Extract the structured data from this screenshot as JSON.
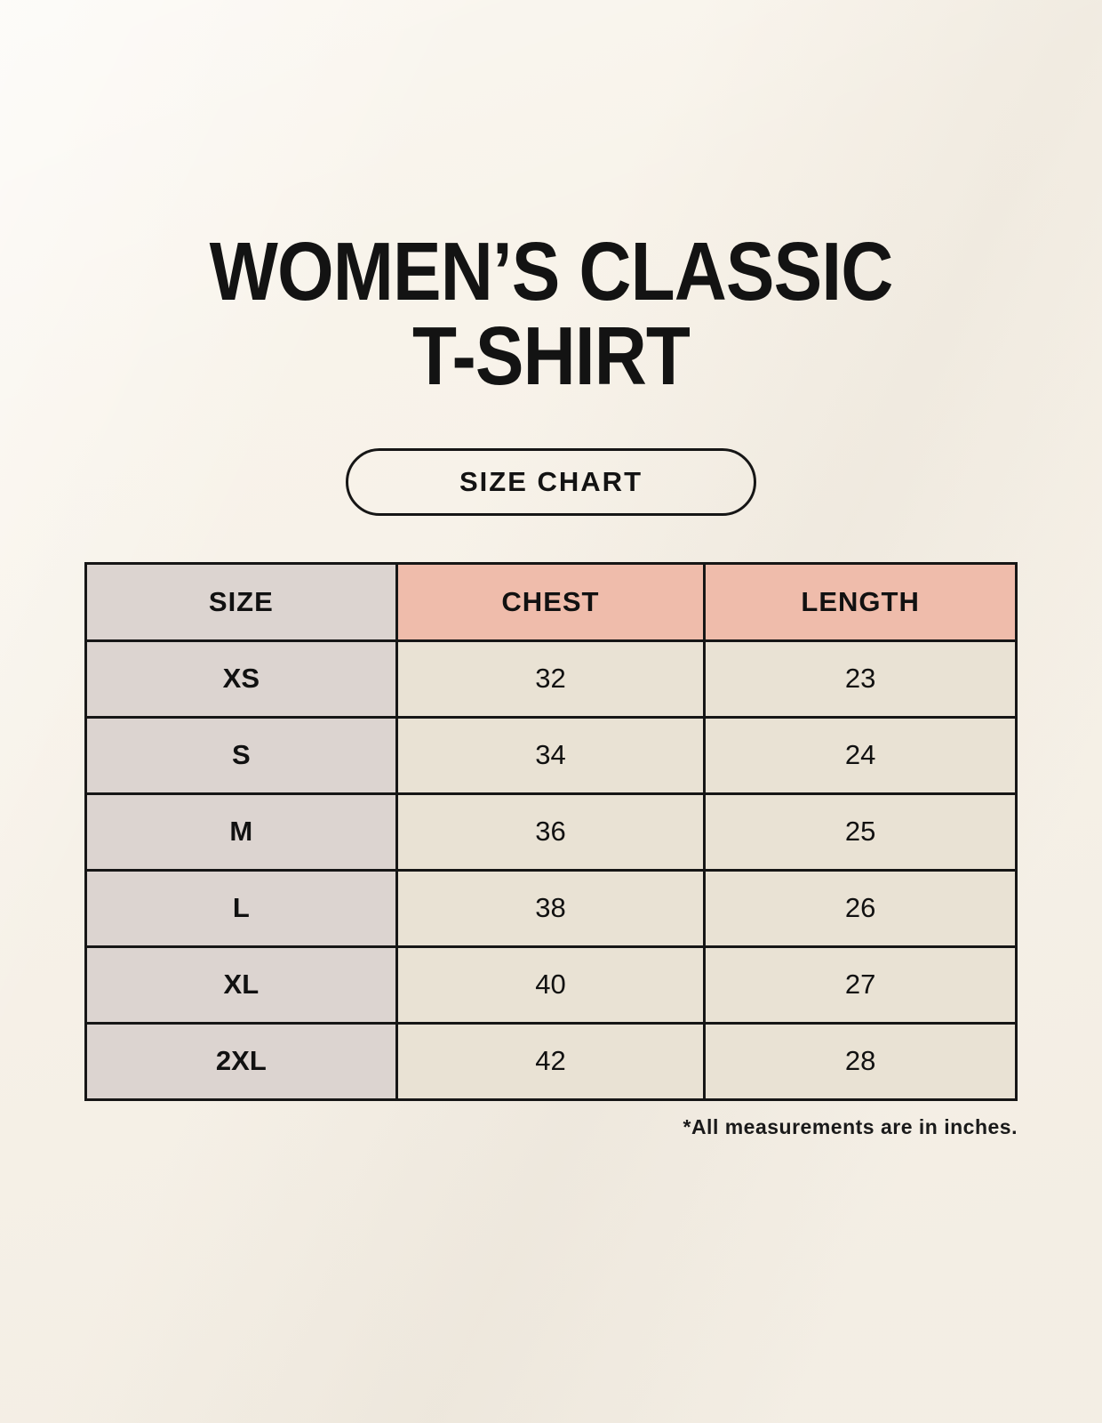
{
  "header": {
    "title_line1": "WOMEN’S CLASSIC",
    "title_line2": "T-SHIRT",
    "size_chart_button": "SIZE CHART"
  },
  "chart_data": {
    "type": "table",
    "title": "WOMEN’S CLASSIC T-SHIRT — SIZE CHART",
    "columns": [
      "SIZE",
      "CHEST",
      "LENGTH"
    ],
    "rows": [
      [
        "XS",
        "32",
        "23"
      ],
      [
        "S",
        "34",
        "24"
      ],
      [
        "M",
        "36",
        "25"
      ],
      [
        "L",
        "38",
        "26"
      ],
      [
        "XL",
        "40",
        "27"
      ],
      [
        "2XL",
        "42",
        "28"
      ]
    ],
    "footnote": "*All measurements are in inches."
  },
  "colors": {
    "page_background": "#f8f3ea",
    "size_column_fill": "#dcd4d0",
    "header_fill": "#efbcab",
    "data_cell_fill": "#e9e2d4",
    "border": "#161616",
    "text": "#111111"
  }
}
